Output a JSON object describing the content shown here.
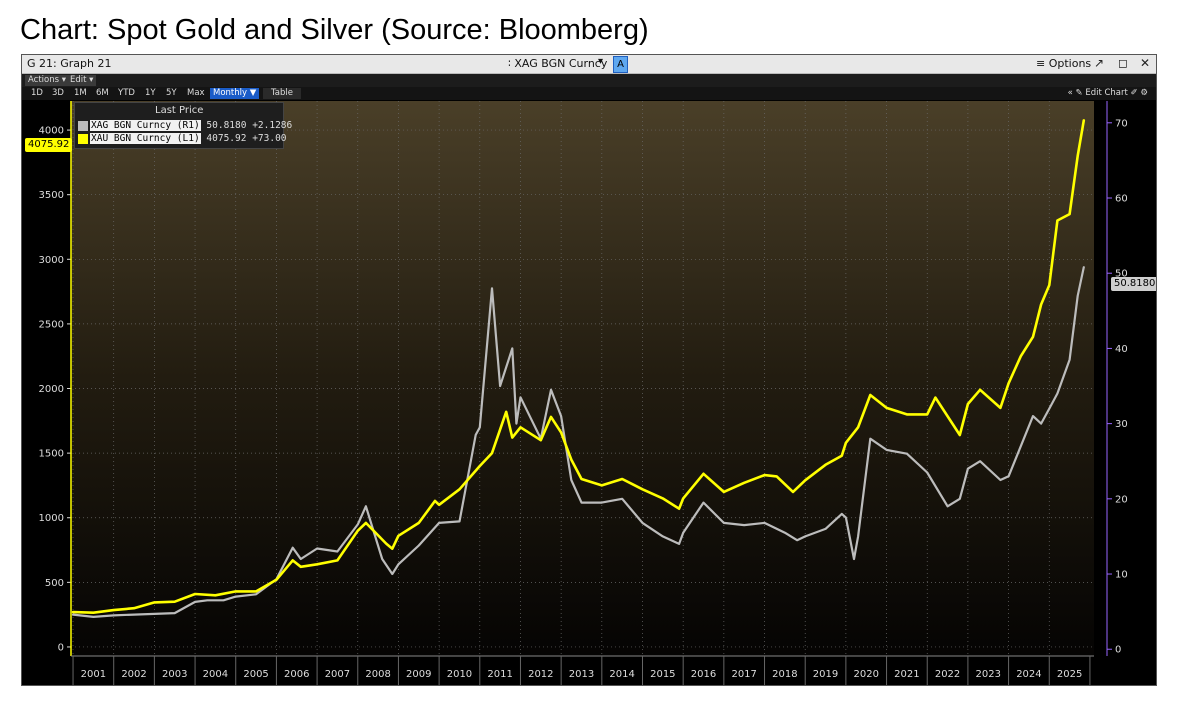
{
  "page": {
    "title": "Chart: Spot Gold and Silver (Source: Bloomberg)"
  },
  "titlebar": {
    "graph_id": "G 21: Graph 21",
    "ticker": "∶ XAG BGN Curncy",
    "dropdown": "▾",
    "a_button": "A",
    "options": "≡ Options",
    "pop_out": "↗",
    "maximize": "◻",
    "close": "✕"
  },
  "menubar": {
    "actions": "Actions ▾",
    "edit": "Edit ▾"
  },
  "toolbar": {
    "ranges": [
      "1D",
      "3D",
      "1M",
      "6M",
      "YTD",
      "1Y",
      "5Y",
      "Max"
    ],
    "frequency": "Monthly ▼",
    "table": "Table",
    "edit_chart": "« ✎ Edit Chart ✐ ⚙"
  },
  "legend": {
    "header": "Last Price",
    "rows": [
      {
        "name": "XAG BGN Curncy  (R1)",
        "value": "50.8180",
        "change": "+2.1286",
        "color": "#bcbcbc"
      },
      {
        "name": "XAU BGN Curncy  (L1)",
        "value": "4075.92",
        "change": "+73.00",
        "color": "#ffff00"
      }
    ]
  },
  "tags": {
    "gold_last": "4075.92",
    "silver_last": "50.8180"
  },
  "chart_data": {
    "type": "line",
    "left_axis": {
      "ticks": [
        0,
        500,
        1000,
        1500,
        2000,
        2500,
        3000,
        3500,
        4000
      ],
      "range": [
        -70,
        4225
      ]
    },
    "right_axis": {
      "ticks": [
        0,
        10,
        20,
        30,
        40,
        50,
        60,
        70
      ],
      "range": [
        -0.9,
        72.9
      ]
    },
    "x_range": [
      2000.95,
      2026.1
    ],
    "x_labels": [
      "2001",
      "2002",
      "2003",
      "2004",
      "2005",
      "2006",
      "2007",
      "2008",
      "2009",
      "2010",
      "2011",
      "2012",
      "2013",
      "2014",
      "2015",
      "2016",
      "2017",
      "2018",
      "2019",
      "2020",
      "2021",
      "2022",
      "2023",
      "2024",
      "2025"
    ],
    "colors": {
      "gold": "#ffff00",
      "silver": "#bcbcbc",
      "right_axis": "#9966ff",
      "grid": "#6a6a6a"
    },
    "series": [
      {
        "name": "XAU BGN Curncy (L1)",
        "axis": "left",
        "x": [
          2001.0,
          2001.5,
          2002.0,
          2002.5,
          2003.0,
          2003.5,
          2004.0,
          2004.5,
          2005.0,
          2005.5,
          2006.0,
          2006.4,
          2006.6,
          2007.0,
          2007.5,
          2008.0,
          2008.2,
          2008.7,
          2008.85,
          2009.0,
          2009.5,
          2009.9,
          2010.0,
          2010.5,
          2011.0,
          2011.3,
          2011.65,
          2011.8,
          2012.0,
          2012.5,
          2012.75,
          2013.0,
          2013.25,
          2013.5,
          2014.0,
          2014.5,
          2015.0,
          2015.5,
          2015.9,
          2016.0,
          2016.5,
          2017.0,
          2017.5,
          2018.0,
          2018.3,
          2018.7,
          2019.0,
          2019.5,
          2019.9,
          2020.0,
          2020.3,
          2020.6,
          2021.0,
          2021.5,
          2022.0,
          2022.2,
          2022.8,
          2023.0,
          2023.3,
          2023.8,
          2024.0,
          2024.3,
          2024.6,
          2024.8,
          2025.0,
          2025.2,
          2025.5,
          2025.7,
          2025.85
        ],
        "y": [
          270,
          265,
          285,
          300,
          345,
          350,
          410,
          400,
          430,
          430,
          520,
          670,
          620,
          640,
          670,
          900,
          960,
          800,
          760,
          860,
          960,
          1130,
          1100,
          1220,
          1400,
          1500,
          1820,
          1620,
          1700,
          1600,
          1780,
          1660,
          1450,
          1300,
          1250,
          1300,
          1220,
          1150,
          1070,
          1150,
          1340,
          1200,
          1270,
          1330,
          1320,
          1200,
          1290,
          1410,
          1480,
          1580,
          1700,
          1950,
          1850,
          1800,
          1800,
          1930,
          1640,
          1880,
          1990,
          1850,
          2040,
          2250,
          2400,
          2650,
          2800,
          3300,
          3350,
          3800,
          4075
        ]
      },
      {
        "name": "XAG BGN Curncy (R1)",
        "axis": "right",
        "x": [
          2001.0,
          2001.5,
          2002.0,
          2002.5,
          2003.0,
          2003.5,
          2004.0,
          2004.3,
          2004.7,
          2005.0,
          2005.5,
          2006.0,
          2006.4,
          2006.6,
          2007.0,
          2007.5,
          2008.0,
          2008.2,
          2008.6,
          2008.85,
          2009.0,
          2009.5,
          2010.0,
          2010.5,
          2010.9,
          2011.0,
          2011.3,
          2011.5,
          2011.8,
          2011.9,
          2012.0,
          2012.5,
          2012.75,
          2013.0,
          2013.25,
          2013.5,
          2014.0,
          2014.5,
          2015.0,
          2015.5,
          2015.9,
          2016.0,
          2016.5,
          2017.0,
          2017.5,
          2018.0,
          2018.5,
          2018.8,
          2019.0,
          2019.5,
          2019.9,
          2020.0,
          2020.2,
          2020.3,
          2020.6,
          2021.0,
          2021.5,
          2022.0,
          2022.5,
          2022.8,
          2023.0,
          2023.3,
          2023.8,
          2024.0,
          2024.3,
          2024.6,
          2024.8,
          2025.0,
          2025.2,
          2025.5,
          2025.7,
          2025.85
        ],
        "y": [
          4.6,
          4.3,
          4.5,
          4.6,
          4.7,
          4.8,
          6.3,
          6.5,
          6.5,
          7.0,
          7.3,
          9.3,
          13.5,
          12.0,
          13.4,
          13.0,
          16.6,
          19.0,
          12.0,
          10.0,
          11.3,
          13.8,
          16.8,
          17.0,
          28.5,
          29.5,
          48.0,
          35.0,
          40.0,
          30.0,
          33.5,
          28.0,
          34.5,
          31.0,
          22.5,
          19.5,
          19.5,
          20.0,
          16.8,
          15.0,
          14.0,
          15.5,
          19.5,
          16.8,
          16.5,
          16.8,
          15.5,
          14.5,
          15.0,
          16.0,
          18.0,
          17.5,
          12.0,
          15.0,
          28.0,
          26.5,
          26.0,
          23.5,
          19.0,
          20.0,
          24.0,
          25.0,
          22.5,
          23.0,
          27.0,
          31.0,
          30.0,
          32.0,
          34.0,
          38.5,
          47.0,
          50.8
        ]
      }
    ]
  }
}
